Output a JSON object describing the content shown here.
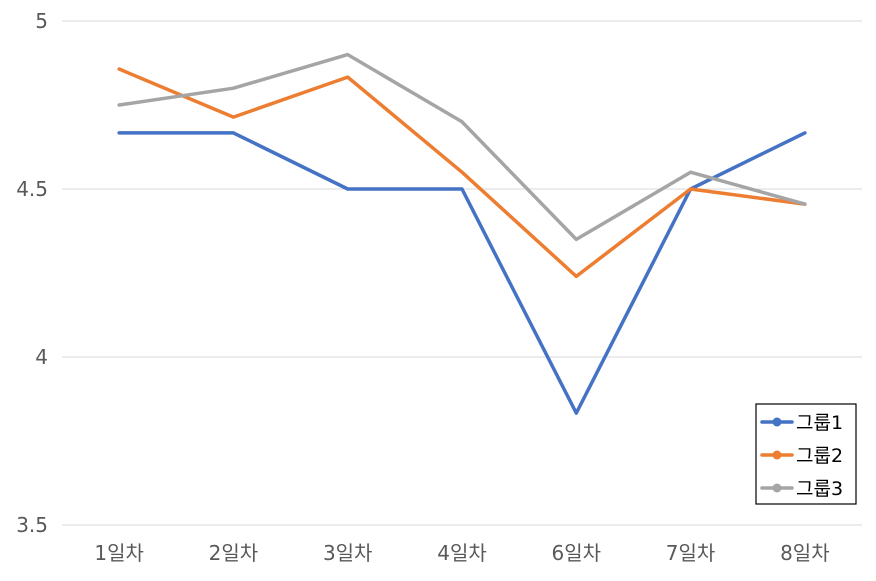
{
  "chart_data": {
    "type": "line",
    "title": "",
    "xlabel": "",
    "ylabel": "",
    "categories": [
      "1일차",
      "2일차",
      "3일차",
      "4일차",
      "6일차",
      "7일차",
      "8일차"
    ],
    "ylim": [
      3.5,
      5
    ],
    "yticks": [
      3.5,
      4,
      4.5,
      5
    ],
    "ytick_labels": [
      "3.5",
      "4",
      "4.5",
      "5"
    ],
    "grid": true,
    "legend_position": "bottom-right",
    "series": [
      {
        "name": "그룹1",
        "color": "#4472C4",
        "values": [
          4.667,
          4.667,
          4.5,
          4.5,
          3.833,
          4.5,
          4.667
        ]
      },
      {
        "name": "그룹2",
        "color": "#ED7D31",
        "values": [
          4.857,
          4.714,
          4.833,
          4.55,
          4.24,
          4.5,
          4.455
        ]
      },
      {
        "name": "그룹3",
        "color": "#A5A5A5",
        "values": [
          4.75,
          4.8,
          4.9,
          4.7,
          4.35,
          4.55,
          4.455
        ]
      }
    ]
  }
}
